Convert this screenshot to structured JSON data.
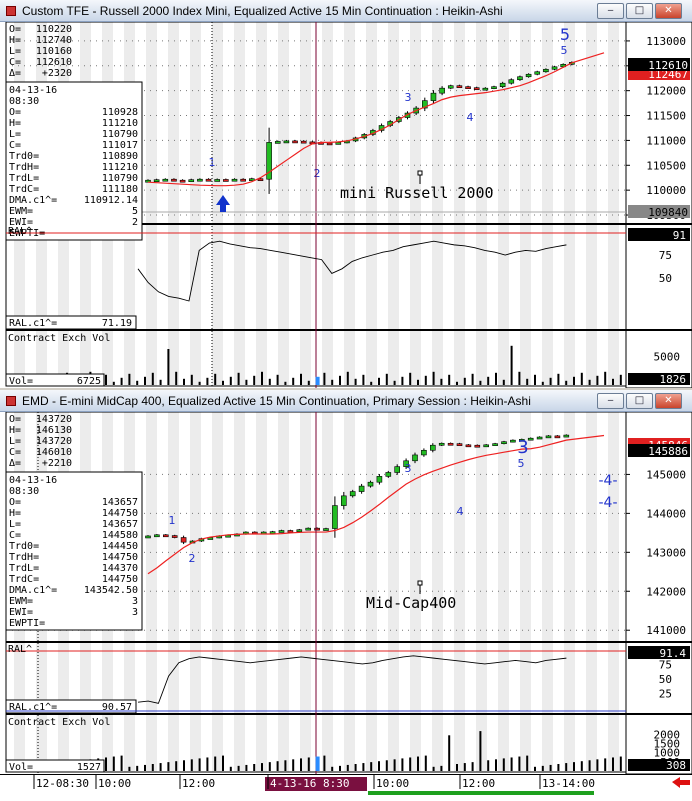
{
  "windows": [
    {
      "title": "Custom TFE - Russell 2000 Index Mini, Equalized Active 15 Min Continuation : Heikin-Ashi",
      "ohlc": [
        [
          "O=",
          "110220"
        ],
        [
          "H=",
          "112740"
        ],
        [
          "L=",
          "110160"
        ],
        [
          "C=",
          "112610"
        ],
        [
          "Δ=",
          "+2320"
        ]
      ],
      "date": "04-13-16",
      "time": "08:30",
      "stats": [
        [
          "O=",
          "110928"
        ],
        [
          "H=",
          "111210"
        ],
        [
          "L=",
          "110790"
        ],
        [
          "C=",
          "111017"
        ],
        [
          "Trd0=",
          "110890"
        ],
        [
          "TrdH=",
          "111210"
        ],
        [
          "TrdL=",
          "110790"
        ],
        [
          "TrdC=",
          "111180"
        ],
        [
          "DMA.c1^=",
          "110912.14"
        ],
        [
          "EWM=",
          "5"
        ],
        [
          "EWI=",
          "2"
        ],
        [
          "EWPTI=",
          ""
        ]
      ],
      "chart_label": "mini Russell 2000",
      "price_ticks": [
        "113000",
        "112500",
        "112000",
        "111500",
        "111000",
        "110500",
        "110000",
        "109500"
      ],
      "last_price": "112610",
      "second_price": "112467",
      "dma_price": "109840",
      "wave_labels": [
        {
          "text": "1"
        },
        {
          "text": "2"
        },
        {
          "text": "3"
        },
        {
          "text": "4"
        },
        {
          "text": "5"
        },
        {
          "text": "5"
        }
      ],
      "ral_label": "RAL^",
      "ral_value_label": "RAL.c1^=",
      "ral_value": "71.19",
      "ral_ticks": [
        "75",
        "50"
      ],
      "ral_last": "91",
      "vol_label": "Contract Exch Vol",
      "vol_value_label": "Vol=",
      "vol_value": "6725",
      "vol_ticks": [
        "5000"
      ],
      "vol_last": "1826"
    },
    {
      "title": "EMD - E-mini MidCap 400, Equalized Active 15 Min Continuation, Primary Session : Heikin-Ashi",
      "ohlc": [
        [
          "O=",
          "143720"
        ],
        [
          "H=",
          "146130"
        ],
        [
          "L=",
          "143720"
        ],
        [
          "C=",
          "146010"
        ],
        [
          "Δ=",
          "+2210"
        ]
      ],
      "date": "04-13-16",
      "time": "08:30",
      "stats": [
        [
          "O=",
          "143657"
        ],
        [
          "H=",
          "144750"
        ],
        [
          "L=",
          "143657"
        ],
        [
          "C=",
          "144580"
        ],
        [
          "Trd0=",
          "144450"
        ],
        [
          "TrdH=",
          "144750"
        ],
        [
          "TrdL=",
          "144370"
        ],
        [
          "TrdC=",
          "144750"
        ],
        [
          "DMA.c1^=",
          "143542.50"
        ],
        [
          "EWM=",
          "3"
        ],
        [
          "EWI=",
          "3"
        ],
        [
          "EWPTI=",
          ""
        ]
      ],
      "chart_label": "Mid-Cap400",
      "price_ticks": [
        "145000",
        "144000",
        "143000",
        "142000",
        "141000"
      ],
      "last_price": "145886",
      "second_price": "145846",
      "wave_labels": [
        {
          "text": "1"
        },
        {
          "text": "2"
        },
        {
          "text": "3"
        },
        {
          "text": "3"
        },
        {
          "text": "4"
        },
        {
          "text": "5"
        },
        {
          "text": "-4-"
        },
        {
          "text": "-4-"
        }
      ],
      "ral_label": "RAL^",
      "ral_value_label": "RAL.c1^=",
      "ral_value": "90.57",
      "ral_ticks": [
        "75",
        "50",
        "25"
      ],
      "ral_last": "91.4",
      "vol_label": "Contract Exch Vol",
      "vol_value_label": "Vol=",
      "vol_value": "1527",
      "vol_ticks": [
        "2000",
        "1500",
        "1000",
        "500"
      ],
      "vol_last": "308"
    }
  ],
  "time_axis": {
    "labels": [
      "12-08:30",
      "10:00",
      "12:00",
      "4-13-16 8:30",
      "10:00",
      "12:00",
      "13-14:00"
    ]
  },
  "colors": {
    "up": "#22bb22",
    "down": "#dd2222",
    "ma": "#ee2222",
    "wave": "#2233cc",
    "marker": "#7a0030",
    "vol_hi": "#2a8cff"
  },
  "chart_data": [
    {
      "type": "candlestick",
      "title": "Custom TFE - Russell 2000 Index Mini, Equalized Active 15 Min Continuation : Heikin-Ashi",
      "ylim": [
        109400,
        113300
      ],
      "candles": [
        110200,
        110210,
        110220,
        110200,
        110190,
        110210,
        110220,
        110200,
        110215,
        110205,
        110220,
        110215,
        110230,
        110220,
        110960,
        110980,
        110990,
        110985,
        110970,
        110960,
        110950,
        110940,
        110960,
        110990,
        111050,
        111120,
        111200,
        111300,
        111380,
        111460,
        111550,
        111650,
        111800,
        111950,
        112050,
        112100,
        112080,
        112060,
        112040,
        112050,
        112080,
        112150,
        112220,
        112280,
        112330,
        112380,
        112430,
        112480,
        112530,
        112570
      ],
      "ma": [
        110160,
        110150,
        110140,
        110130,
        110120,
        110110,
        110100,
        110095,
        110090,
        110090,
        110100,
        110120,
        110170,
        110250,
        110360,
        110480,
        110600,
        110720,
        110840,
        110930,
        110960,
        110960,
        110970,
        110990,
        111030,
        111080,
        111140,
        111220,
        111310,
        111420,
        111520,
        111600,
        111670,
        111740,
        111820,
        111870,
        111900,
        111920,
        111940,
        111960,
        111990,
        112020,
        112060,
        112100,
        112160,
        112230,
        112300,
        112380,
        112470,
        112560
      ]
    },
    {
      "type": "candlestick",
      "title": "EMD - E-mini MidCap 400, Equalized Active 15 Min Continuation, Primary Session : Heikin-Ashi",
      "ylim": [
        140800,
        146500
      ],
      "candles": [
        143420,
        143450,
        143430,
        143380,
        143260,
        143290,
        143350,
        143380,
        143420,
        143440,
        143470,
        143520,
        143510,
        143520,
        143530,
        143560,
        143550,
        143580,
        143620,
        143590,
        143610,
        144200,
        144450,
        144560,
        144700,
        144800,
        144950,
        145050,
        145200,
        145350,
        145500,
        145620,
        145750,
        145800,
        145790,
        145760,
        145750,
        145740,
        145760,
        145790,
        145840,
        145880,
        145900,
        145930,
        145960,
        145990,
        145980,
        146010
      ],
      "ma": [
        142450,
        142600,
        142780,
        142950,
        143120,
        143250,
        143340,
        143390,
        143420,
        143450,
        143460,
        143470,
        143470,
        143470,
        143470,
        143480,
        143500,
        143510,
        143520,
        143520,
        143520,
        143560,
        143640,
        143760,
        143900,
        144060,
        144230,
        144410,
        144580,
        144750,
        144880,
        144990,
        145080,
        145160,
        145240,
        145310,
        145380,
        145440,
        145490,
        145530,
        145570,
        145610,
        145650,
        145660,
        145700,
        145760,
        145820,
        145880
      ]
    }
  ]
}
